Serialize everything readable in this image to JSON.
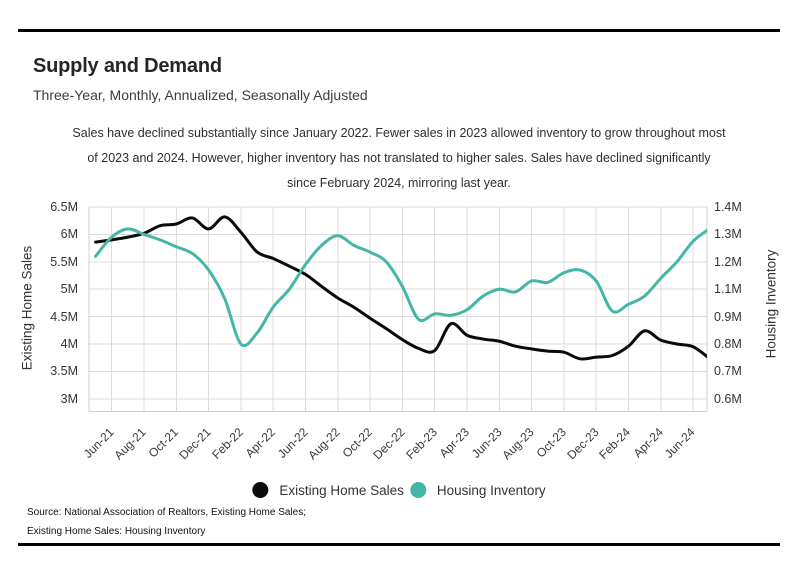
{
  "header": {
    "title": "Supply and Demand",
    "subtitle": "Three-Year, Monthly, Annualized, Seasonally Adjusted"
  },
  "annotation": {
    "lines": [
      "Sales have declined substantially since January 2022. Fewer sales in 2023 allowed inventory to grow throughout most",
      "of 2023 and 2024. However, higher inventory has not translated to higher sales. Sales have declined significantly",
      "since February 2024, mirroring last year."
    ]
  },
  "chart_data": {
    "type": "line",
    "grid": true,
    "legend_position": "bottom",
    "x": [
      "May-21",
      "Jun-21",
      "Jul-21",
      "Aug-21",
      "Sep-21",
      "Oct-21",
      "Nov-21",
      "Dec-21",
      "Jan-22",
      "Feb-22",
      "Mar-22",
      "Apr-22",
      "May-22",
      "Jun-22",
      "Jul-22",
      "Aug-22",
      "Sep-22",
      "Oct-22",
      "Nov-22",
      "Dec-22",
      "Jan-23",
      "Feb-23",
      "Mar-23",
      "Apr-23",
      "May-23",
      "Jun-23",
      "Jul-23",
      "Aug-23",
      "Sep-23",
      "Oct-23",
      "Nov-23",
      "Dec-23",
      "Jan-24",
      "Feb-24",
      "Mar-24",
      "Apr-24",
      "May-24",
      "Jun-24",
      "Jul-24"
    ],
    "x_tick_labels": [
      "Jun-21",
      "Aug-21",
      "Oct-21",
      "Dec-21",
      "Feb-22",
      "Apr-22",
      "Jun-22",
      "Aug-22",
      "Oct-22",
      "Dec-22",
      "Feb-23",
      "Apr-23",
      "Jun-23",
      "Aug-23",
      "Oct-23",
      "Dec-23",
      "Feb-24",
      "Apr-24",
      "Jun-24"
    ],
    "series": [
      {
        "name": "Existing Home Sales",
        "axis": "left",
        "color": "#0a0a0a",
        "values": [
          5.86,
          5.9,
          5.95,
          6.02,
          6.16,
          6.19,
          6.3,
          6.1,
          6.32,
          6.04,
          5.68,
          5.56,
          5.42,
          5.27,
          5.05,
          4.84,
          4.67,
          4.47,
          4.28,
          4.08,
          3.92,
          3.88,
          4.37,
          4.16,
          4.09,
          4.05,
          3.96,
          3.91,
          3.87,
          3.85,
          3.73,
          3.76,
          3.79,
          3.96,
          4.24,
          4.07,
          4.0,
          3.95,
          3.74
        ]
      },
      {
        "name": "Housing Inventory",
        "axis": "right",
        "color": "#45b6a5",
        "values": [
          1.22,
          1.29,
          1.32,
          1.3,
          1.28,
          1.255,
          1.23,
          1.17,
          1.03,
          0.8,
          0.84,
          0.97,
          1.1,
          1.19,
          1.26,
          1.295,
          1.26,
          1.235,
          1.2,
          1.11,
          0.89,
          0.92,
          0.91,
          0.95,
          1.05,
          1.1,
          1.08,
          1.13,
          1.125,
          1.16,
          1.17,
          1.13,
          0.94,
          0.99,
          1.05,
          1.14,
          1.2,
          1.275,
          1.32
        ]
      }
    ],
    "left_axis": {
      "title": "Existing Home Sales",
      "ticks": [
        "6.5M",
        "6M",
        "5.5M",
        "5M",
        "4.5M",
        "4M",
        "3.5M",
        "3M"
      ],
      "tick_values": [
        6.5,
        6.0,
        5.5,
        5.0,
        4.5,
        4.0,
        3.5,
        3.0
      ]
    },
    "right_axis": {
      "title": "Housing Inventory",
      "ticks": [
        "1.4M",
        "1.3M",
        "1.2M",
        "1.1M",
        "0.9M",
        "0.8M",
        "0.7M",
        "0.6M"
      ],
      "tick_values": [
        1.4,
        1.3,
        1.2,
        1.1,
        0.9,
        0.8,
        0.7,
        0.6
      ]
    }
  },
  "legend": {
    "items": [
      {
        "label": "Existing Home Sales",
        "color": "#0a0a0a"
      },
      {
        "label": "Housing Inventory",
        "color": "#45b6a5"
      }
    ]
  },
  "source": {
    "line1": "Source:  National Association of Realtors, Existing Home Sales;",
    "line2": "Existing Home Sales: Housing Inventory"
  }
}
